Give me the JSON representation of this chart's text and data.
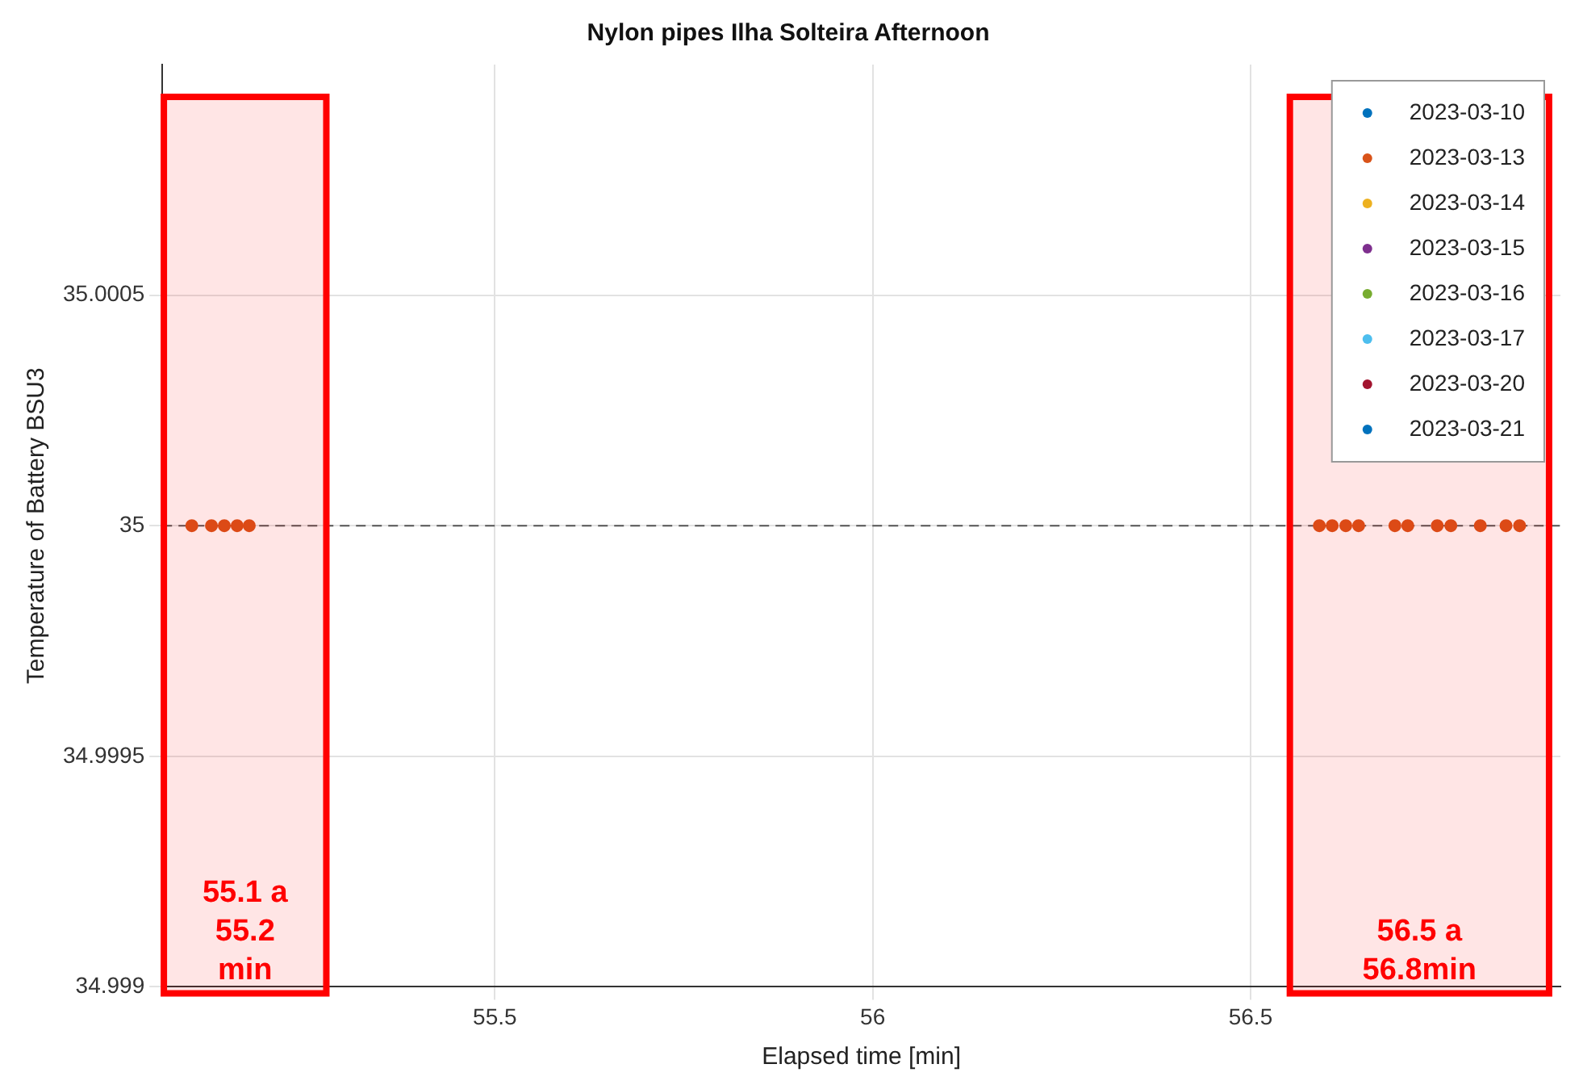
{
  "chart_data": {
    "type": "scatter",
    "title": "Nylon pipes Ilha Solteira Afternoon",
    "xlabel": "Elapsed time [min]",
    "ylabel": "Temperature of Battery BSU3",
    "xlim": [
      55.06,
      56.91
    ],
    "xticks": [
      55.5,
      56,
      56.5
    ],
    "ylim": [
      34.999,
      35.001
    ],
    "yticks": [
      34.999,
      34.9995,
      35,
      35.0005
    ],
    "grid": true,
    "legend": "top right",
    "marker": "circle",
    "series": [
      {
        "name": "2023-03-10",
        "color": "#0072bd"
      },
      {
        "name": "2023-03-13",
        "color": "#d95319",
        "x": [
          55.099,
          55.125,
          55.142,
          55.159,
          55.175,
          56.591,
          56.608,
          56.626,
          56.643,
          56.691,
          56.708,
          56.747,
          56.765,
          56.804,
          56.838,
          56.856
        ],
        "values": [
          35,
          35,
          35,
          35,
          35,
          35,
          35,
          35,
          35,
          35,
          35,
          35,
          35,
          35,
          35,
          35
        ]
      },
      {
        "name": "2023-03-14",
        "color": "#edb120"
      },
      {
        "name": "2023-03-15",
        "color": "#7e2f8e"
      },
      {
        "name": "2023-03-16",
        "color": "#77ac30"
      },
      {
        "name": "2023-03-17",
        "color": "#4dbeee"
      },
      {
        "name": "2023-03-20",
        "color": "#a2142f"
      },
      {
        "name": "2023-03-21",
        "color": "#0072bd"
      }
    ],
    "ref_lines": [
      {
        "axis": "y",
        "value": 35,
        "color": "#555555",
        "line_style": "dashed"
      }
    ],
    "bands": [
      {
        "axis": "x",
        "from": 55.062,
        "to": 55.277,
        "label": "55.1 a 55.2 min",
        "color": "#ff0000"
      },
      {
        "axis": "x",
        "from": 56.552,
        "to": 56.895,
        "label": "56.5 a 56.8min",
        "color": "#ff0000"
      }
    ]
  }
}
